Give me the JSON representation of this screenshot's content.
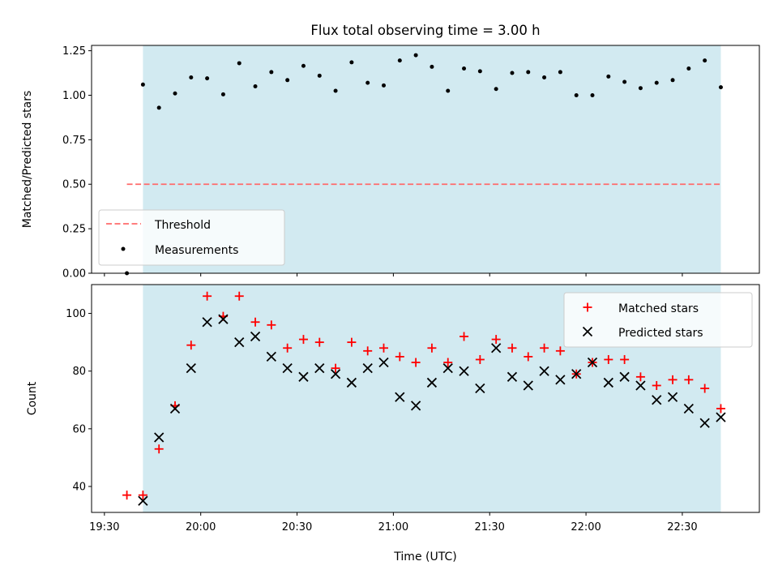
{
  "chart_data": [
    {
      "type": "scatter",
      "title": "Flux total observing time = 3.00 h",
      "ylabel": "Matched/Predicted stars",
      "xlabel": "",
      "xlim": [
        "19:26",
        "22:54"
      ],
      "ylim": [
        0,
        1.28
      ],
      "yticks": [
        0.0,
        0.25,
        0.5,
        0.75,
        1.0,
        1.25
      ],
      "ytick_labels": [
        "0.00",
        "0.25",
        "0.50",
        "0.75",
        "1.00",
        "1.25"
      ],
      "shaded_span": [
        "19:42",
        "22:42"
      ],
      "threshold": {
        "name": "Threshold",
        "value": 0.5,
        "x_range": [
          "19:37",
          "22:42"
        ],
        "color": "#ff6b6b",
        "style": "dashed"
      },
      "series": [
        {
          "name": "Measurements",
          "marker": "dot",
          "color": "#000000",
          "x": [
            "19:37",
            "19:42",
            "19:47",
            "19:52",
            "19:57",
            "20:02",
            "20:07",
            "20:12",
            "20:17",
            "20:22",
            "20:27",
            "20:32",
            "20:37",
            "20:42",
            "20:47",
            "20:52",
            "20:57",
            "21:02",
            "21:07",
            "21:12",
            "21:17",
            "21:22",
            "21:27",
            "21:32",
            "21:37",
            "21:42",
            "21:47",
            "21:52",
            "21:57",
            "22:02",
            "22:07",
            "22:12",
            "22:17",
            "22:22",
            "22:27",
            "22:32",
            "22:37",
            "22:42"
          ],
          "y": [
            0.0,
            1.06,
            0.93,
            1.01,
            1.1,
            1.095,
            1.005,
            1.18,
            1.05,
            1.13,
            1.085,
            1.165,
            1.11,
            1.025,
            1.185,
            1.07,
            1.055,
            1.195,
            1.225,
            1.16,
            1.025,
            1.15,
            1.135,
            1.035,
            1.125,
            1.13,
            1.1,
            1.13,
            1.0,
            1.0,
            1.105,
            1.075,
            1.04,
            1.07,
            1.085,
            1.15,
            1.195,
            1.045
          ]
        }
      ],
      "legend": {
        "position": "lower-left",
        "entries": [
          "Threshold",
          "Measurements"
        ]
      }
    },
    {
      "type": "scatter",
      "title": "",
      "ylabel": "Count",
      "xlabel": "Time (UTC)",
      "xlim": [
        "19:26",
        "22:54"
      ],
      "ylim": [
        31,
        110
      ],
      "yticks": [
        40,
        60,
        80,
        100
      ],
      "ytick_labels": [
        "40",
        "60",
        "80",
        "100"
      ],
      "xticks": [
        "19:30",
        "20:00",
        "20:30",
        "21:00",
        "21:30",
        "22:00",
        "22:30"
      ],
      "shaded_span": [
        "19:42",
        "22:42"
      ],
      "series": [
        {
          "name": "Matched stars",
          "marker": "plus",
          "color": "#ff0000",
          "x": [
            "19:37",
            "19:42",
            "19:47",
            "19:52",
            "19:57",
            "20:02",
            "20:07",
            "20:12",
            "20:17",
            "20:22",
            "20:27",
            "20:32",
            "20:37",
            "20:42",
            "20:47",
            "20:52",
            "20:57",
            "21:02",
            "21:07",
            "21:12",
            "21:17",
            "21:22",
            "21:27",
            "21:32",
            "21:37",
            "21:42",
            "21:47",
            "21:52",
            "21:57",
            "22:02",
            "22:07",
            "22:12",
            "22:17",
            "22:22",
            "22:27",
            "22:32",
            "22:37",
            "22:42"
          ],
          "y": [
            37,
            37,
            53,
            68,
            89,
            106,
            99,
            106,
            97,
            96,
            88,
            91,
            90,
            81,
            90,
            87,
            88,
            85,
            83,
            88,
            83,
            92,
            84,
            91,
            88,
            85,
            88,
            87,
            79,
            83,
            84,
            84,
            78,
            75,
            77,
            77,
            74,
            67
          ]
        },
        {
          "name": "Predicted stars",
          "marker": "x",
          "color": "#000000",
          "x": [
            "19:42",
            "19:47",
            "19:52",
            "19:57",
            "20:02",
            "20:07",
            "20:12",
            "20:17",
            "20:22",
            "20:27",
            "20:32",
            "20:37",
            "20:42",
            "20:47",
            "20:52",
            "20:57",
            "21:02",
            "21:07",
            "21:12",
            "21:17",
            "21:22",
            "21:27",
            "21:32",
            "21:37",
            "21:42",
            "21:47",
            "21:52",
            "21:57",
            "22:02",
            "22:07",
            "22:12",
            "22:17",
            "22:22",
            "22:27",
            "22:32",
            "22:37",
            "22:42"
          ],
          "y": [
            35,
            57,
            67,
            81,
            97,
            98,
            90,
            92,
            85,
            81,
            78,
            81,
            79,
            76,
            81,
            83,
            71,
            68,
            76,
            81,
            80,
            74,
            88,
            78,
            75,
            80,
            77,
            79,
            83,
            76,
            78,
            75,
            70,
            71,
            67,
            62,
            64
          ]
        }
      ],
      "legend": {
        "position": "upper-right",
        "entries": [
          "Matched stars",
          "Predicted stars"
        ]
      }
    }
  ],
  "colors": {
    "shade": "#add8e6",
    "threshold": "#ff6b6b",
    "matched": "#ff0000",
    "predicted": "#000000",
    "measurement": "#000000"
  }
}
